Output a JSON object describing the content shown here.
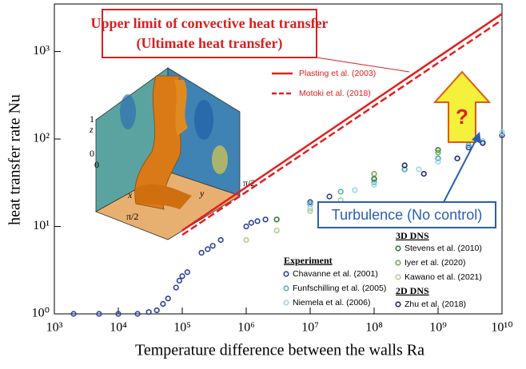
{
  "chart_data": {
    "type": "scatter",
    "x_label": "Temperature difference between the walls Ra",
    "y_label": "heat transfer rate Nu",
    "log_x": true,
    "log_y": true,
    "xlim": [
      1000,
      10000000000
    ],
    "ylim": [
      1,
      3500
    ],
    "xticks": [
      {
        "value": 1000,
        "label": "10³"
      },
      {
        "value": 10000,
        "label": "10⁴"
      },
      {
        "value": 100000,
        "label": "10⁵"
      },
      {
        "value": 1000000,
        "label": "10⁶"
      },
      {
        "value": 10000000,
        "label": "10⁷"
      },
      {
        "value": 100000000,
        "label": "10⁸"
      },
      {
        "value": 1000000000,
        "label": "10⁹"
      },
      {
        "value": 10000000000,
        "label": "10¹⁰"
      }
    ],
    "yticks": [
      {
        "value": 1,
        "label": "10⁰"
      },
      {
        "value": 10,
        "label": "10¹"
      },
      {
        "value": 100,
        "label": "10²"
      },
      {
        "value": 1000,
        "label": "10³"
      }
    ],
    "legend_groups": [
      "Experiment",
      "3D DNS",
      "2D DNS"
    ],
    "series": [
      {
        "name": "Plasting et al. (2003)",
        "kind": "line",
        "color": "#e02020",
        "dash": false,
        "x": [
          100000,
          10000000000
        ],
        "values": [
          9,
          2700
        ]
      },
      {
        "name": "Motoki et al. (2018)",
        "kind": "line",
        "color": "#e02020",
        "dash": true,
        "x": [
          100000,
          10000000000
        ],
        "values": [
          8,
          2300
        ]
      },
      {
        "name": "Chavanne et al. (2001)",
        "kind": "scatter",
        "group": 0,
        "color": "#2a3f9e",
        "x": [
          2000,
          5000,
          10000,
          20000,
          30000,
          40000,
          50000,
          60000,
          80000,
          90000,
          100000,
          120000,
          200000,
          250000,
          300000,
          400000,
          1000000,
          1200000,
          1500000,
          2000000,
          10000000,
          20000000,
          100000000,
          300000000,
          1000000000,
          3000000000,
          10000000000
        ],
        "values": [
          1,
          1,
          1,
          1,
          1.05,
          1.1,
          1.3,
          1.5,
          2,
          2.4,
          2.7,
          3,
          5,
          5.5,
          6,
          7,
          10,
          11,
          11.5,
          12,
          19,
          22,
          35,
          45,
          60,
          80,
          110
        ]
      },
      {
        "name": "Funfschilling et al. (2005)",
        "kind": "scatter",
        "group": 0,
        "color": "#4fb0b8",
        "x": [
          10000000,
          30000000,
          100000000,
          300000000,
          1000000000,
          3000000000
        ],
        "values": [
          18,
          25,
          32,
          45,
          60,
          85
        ]
      },
      {
        "name": "Niemela et al. (2006)",
        "kind": "scatter",
        "group": 0,
        "color": "#9ad6e0",
        "x": [
          10000000,
          50000000,
          100000000,
          500000000,
          1000000000,
          5000000000,
          10000000000
        ],
        "values": [
          16,
          26,
          30,
          45,
          55,
          95,
          120
        ]
      },
      {
        "name": "Stevens et al. (2010)",
        "kind": "scatter",
        "group": 1,
        "color": "#2e7d32",
        "x": [
          3000000,
          100000000,
          1000000000
        ],
        "values": [
          12,
          35,
          75
        ]
      },
      {
        "name": "Iyer et al. (2020)",
        "kind": "scatter",
        "group": 1,
        "color": "#6ab04c",
        "x": [
          100000000,
          1000000000
        ],
        "values": [
          40,
          70
        ]
      },
      {
        "name": "Kawano et al. (2021)",
        "kind": "scatter",
        "group": 1,
        "color": "#a8d08d",
        "x": [
          1000000,
          3000000,
          10000000,
          30000000
        ],
        "values": [
          7,
          9,
          15,
          20
        ]
      },
      {
        "name": "Zhu et al. (2018)",
        "kind": "scatter",
        "group": 2,
        "color": "#1a237e",
        "x": [
          300000000,
          600000000,
          2000000000,
          5000000000
        ],
        "values": [
          50,
          40,
          60,
          90
        ]
      }
    ],
    "annotations": [
      "Upper limit of convective heat transfer",
      "(Ultimate heat transfer)",
      "?",
      "Turbulence (No control)"
    ],
    "inset_labels": [
      "1",
      "z",
      "0",
      "0",
      "x",
      "y",
      "π/2",
      "π/2"
    ]
  }
}
